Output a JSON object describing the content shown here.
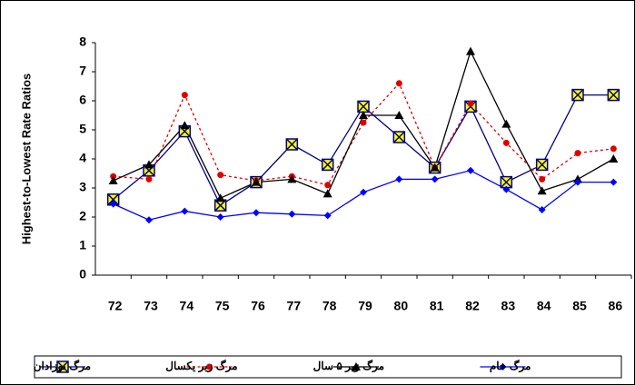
{
  "chart_data": {
    "type": "line",
    "y_label": "Highest-to-Lowest Rate Ratios",
    "categories": [
      "72",
      "73",
      "74",
      "75",
      "76",
      "77",
      "78",
      "79",
      "80",
      "81",
      "82",
      "83",
      "84",
      "85",
      "86"
    ],
    "ylim": [
      0,
      8
    ],
    "yticks": [
      0,
      1,
      2,
      3,
      4,
      5,
      6,
      7,
      8
    ],
    "legend": "bottom",
    "series": [
      {
        "name": "مرگ نوزادان",
        "color": "#000080",
        "marker": "square-x",
        "dash": "solid",
        "values": [
          2.6,
          3.6,
          4.95,
          2.4,
          3.2,
          4.5,
          3.8,
          5.8,
          4.75,
          3.7,
          5.8,
          3.2,
          3.8,
          6.2,
          6.2
        ]
      },
      {
        "name": "مرگ زیر یکسال",
        "color": "#e00000",
        "marker": "circle",
        "dash": "dotted",
        "values": [
          3.4,
          3.3,
          6.2,
          3.45,
          3.25,
          3.4,
          3.1,
          5.25,
          6.6,
          3.7,
          5.9,
          4.55,
          3.3,
          4.2,
          4.35
        ]
      },
      {
        "name": "مرگ زیر ۵ سال",
        "color": "#000000",
        "marker": "triangle",
        "dash": "solid",
        "values": [
          3.25,
          3.8,
          5.15,
          2.65,
          3.2,
          3.3,
          2.8,
          5.5,
          5.5,
          3.7,
          7.7,
          5.2,
          2.9,
          3.3,
          4.0
        ]
      },
      {
        "name": "مرگ خام",
        "color": "#0000ff",
        "marker": "diamond",
        "dash": "solid",
        "values": [
          2.45,
          1.9,
          2.2,
          2.0,
          2.15,
          2.1,
          2.05,
          2.85,
          3.3,
          3.3,
          3.6,
          2.95,
          2.25,
          3.2,
          3.2
        ]
      }
    ]
  }
}
